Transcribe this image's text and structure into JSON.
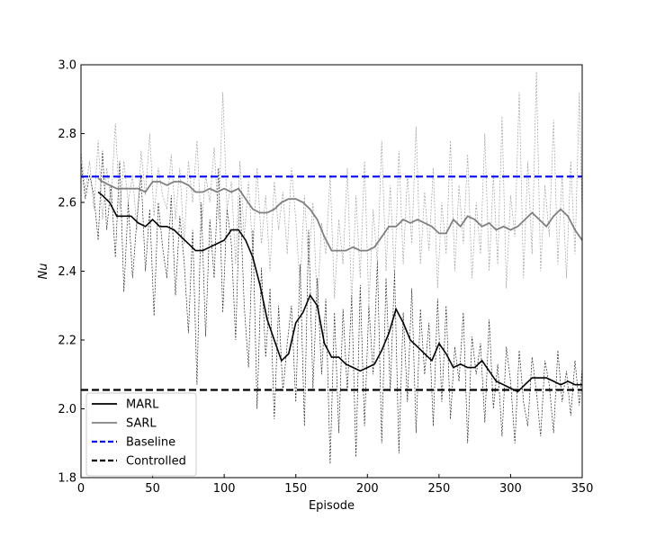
{
  "chart_data": {
    "type": "line",
    "title": "",
    "xlabel": "Episode",
    "ylabel": "Nu",
    "xlim": [
      0,
      350
    ],
    "ylim": [
      1.8,
      3.0
    ],
    "xticks": [
      0,
      50,
      100,
      150,
      200,
      250,
      300,
      350
    ],
    "yticks": [
      1.8,
      2.0,
      2.2,
      2.4,
      2.6,
      2.8,
      3.0
    ],
    "xtick_labels": [
      "0",
      "50",
      "100",
      "150",
      "200",
      "250",
      "300",
      "350"
    ],
    "ytick_labels": [
      "1.8",
      "2.0",
      "2.2",
      "2.4",
      "2.6",
      "2.8",
      "3.0"
    ],
    "grid": false,
    "legend_position": "lower-left",
    "series": [
      {
        "name": "MARL",
        "color": "#000000",
        "style": "solid",
        "x": [
          12,
          15,
          20,
          25,
          30,
          35,
          40,
          45,
          50,
          55,
          60,
          65,
          70,
          75,
          80,
          85,
          90,
          95,
          100,
          105,
          110,
          115,
          120,
          125,
          130,
          135,
          140,
          145,
          150,
          155,
          160,
          165,
          170,
          175,
          180,
          185,
          190,
          195,
          200,
          205,
          210,
          215,
          220,
          225,
          230,
          235,
          240,
          245,
          250,
          255,
          260,
          265,
          270,
          275,
          280,
          285,
          290,
          295,
          300,
          305,
          310,
          315,
          320,
          325,
          330,
          335,
          340,
          345,
          350
        ],
        "values": [
          2.63,
          2.62,
          2.6,
          2.56,
          2.56,
          2.56,
          2.54,
          2.53,
          2.55,
          2.53,
          2.53,
          2.52,
          2.5,
          2.48,
          2.46,
          2.46,
          2.47,
          2.48,
          2.49,
          2.52,
          2.52,
          2.49,
          2.44,
          2.36,
          2.26,
          2.2,
          2.14,
          2.16,
          2.25,
          2.28,
          2.33,
          2.3,
          2.19,
          2.15,
          2.15,
          2.13,
          2.12,
          2.11,
          2.12,
          2.13,
          2.17,
          2.22,
          2.29,
          2.25,
          2.2,
          2.18,
          2.16,
          2.14,
          2.19,
          2.16,
          2.12,
          2.13,
          2.12,
          2.12,
          2.14,
          2.11,
          2.08,
          2.07,
          2.06,
          2.05,
          2.07,
          2.09,
          2.09,
          2.09,
          2.08,
          2.07,
          2.08,
          2.07,
          2.07
        ]
      },
      {
        "name": "SARL",
        "color": "#808080",
        "style": "solid",
        "x": [
          12,
          15,
          20,
          25,
          30,
          35,
          40,
          45,
          50,
          55,
          60,
          65,
          70,
          75,
          80,
          85,
          90,
          95,
          100,
          105,
          110,
          115,
          120,
          125,
          130,
          135,
          140,
          145,
          150,
          155,
          160,
          165,
          170,
          175,
          180,
          185,
          190,
          195,
          200,
          205,
          210,
          215,
          220,
          225,
          230,
          235,
          240,
          245,
          250,
          255,
          260,
          265,
          270,
          275,
          280,
          285,
          290,
          295,
          300,
          305,
          310,
          315,
          320,
          325,
          330,
          335,
          340,
          345,
          350
        ],
        "values": [
          2.67,
          2.66,
          2.65,
          2.64,
          2.64,
          2.64,
          2.64,
          2.63,
          2.66,
          2.66,
          2.65,
          2.66,
          2.66,
          2.65,
          2.63,
          2.63,
          2.64,
          2.63,
          2.64,
          2.63,
          2.64,
          2.61,
          2.58,
          2.57,
          2.57,
          2.58,
          2.6,
          2.61,
          2.61,
          2.6,
          2.58,
          2.55,
          2.5,
          2.46,
          2.46,
          2.46,
          2.47,
          2.46,
          2.46,
          2.47,
          2.5,
          2.53,
          2.53,
          2.55,
          2.54,
          2.55,
          2.54,
          2.53,
          2.51,
          2.51,
          2.55,
          2.53,
          2.56,
          2.55,
          2.53,
          2.54,
          2.52,
          2.53,
          2.52,
          2.53,
          2.55,
          2.57,
          2.55,
          2.53,
          2.56,
          2.58,
          2.56,
          2.52,
          2.49
        ]
      },
      {
        "name": "Baseline",
        "color": "#0000ff",
        "style": "dashed",
        "x": [
          0,
          350
        ],
        "values": [
          2.675,
          2.675
        ]
      },
      {
        "name": "Controlled",
        "color": "#000000",
        "style": "dashed",
        "x": [
          0,
          350
        ],
        "values": [
          2.055,
          2.055
        ]
      }
    ],
    "raw_series": [
      {
        "of": "MARL",
        "color": "#000000",
        "x": [
          0,
          3,
          6,
          9,
          12,
          15,
          18,
          21,
          24,
          27,
          30,
          33,
          36,
          39,
          42,
          45,
          48,
          51,
          54,
          57,
          60,
          63,
          66,
          69,
          72,
          75,
          78,
          81,
          84,
          87,
          90,
          93,
          96,
          99,
          102,
          105,
          108,
          111,
          114,
          117,
          120,
          123,
          126,
          129,
          132,
          135,
          138,
          141,
          144,
          147,
          150,
          153,
          156,
          159,
          162,
          165,
          168,
          171,
          174,
          177,
          180,
          183,
          186,
          189,
          192,
          195,
          198,
          201,
          204,
          207,
          210,
          213,
          216,
          219,
          222,
          225,
          228,
          231,
          234,
          237,
          240,
          243,
          246,
          249,
          252,
          255,
          258,
          261,
          264,
          267,
          270,
          273,
          276,
          279,
          282,
          285,
          288,
          291,
          294,
          297,
          300,
          303,
          306,
          309,
          312,
          315,
          318,
          321,
          324,
          327,
          330,
          333,
          336,
          339,
          342,
          345,
          348,
          350
        ],
        "values": [
          2.72,
          2.61,
          2.68,
          2.62,
          2.49,
          2.75,
          2.52,
          2.65,
          2.44,
          2.72,
          2.34,
          2.6,
          2.38,
          2.55,
          2.68,
          2.4,
          2.58,
          2.27,
          2.6,
          2.47,
          2.38,
          2.62,
          2.33,
          2.56,
          2.43,
          2.22,
          2.52,
          2.07,
          2.6,
          2.21,
          2.55,
          2.38,
          2.7,
          2.28,
          2.58,
          2.48,
          2.2,
          2.62,
          2.3,
          2.12,
          2.52,
          2.0,
          2.41,
          2.15,
          2.35,
          1.97,
          2.3,
          2.05,
          2.19,
          2.3,
          2.02,
          2.42,
          1.95,
          2.52,
          2.06,
          2.38,
          2.1,
          2.32,
          1.84,
          2.28,
          1.93,
          2.29,
          2.05,
          2.33,
          1.86,
          2.36,
          1.95,
          2.3,
          2.1,
          2.43,
          1.9,
          2.38,
          2.05,
          2.4,
          1.87,
          2.28,
          2.02,
          2.35,
          1.93,
          2.29,
          2.1,
          2.25,
          1.95,
          2.32,
          2.02,
          2.3,
          1.97,
          2.18,
          2.08,
          2.28,
          1.9,
          2.21,
          2.1,
          2.19,
          1.96,
          2.26,
          2.0,
          2.13,
          1.92,
          2.18,
          2.08,
          1.9,
          2.17,
          2.02,
          1.95,
          2.15,
          2.05,
          1.92,
          2.14,
          2.07,
          1.93,
          2.17,
          2.02,
          2.11,
          1.98,
          2.14,
          2.01,
          2.12
        ]
      },
      {
        "of": "SARL",
        "color": "#808080",
        "x": [
          0,
          3,
          6,
          9,
          12,
          15,
          18,
          21,
          24,
          27,
          30,
          33,
          36,
          39,
          42,
          45,
          48,
          51,
          54,
          57,
          60,
          63,
          66,
          69,
          72,
          75,
          78,
          81,
          84,
          87,
          90,
          93,
          96,
          99,
          102,
          105,
          108,
          111,
          114,
          117,
          120,
          123,
          126,
          129,
          132,
          135,
          138,
          141,
          144,
          147,
          150,
          153,
          156,
          159,
          162,
          165,
          168,
          171,
          174,
          177,
          180,
          183,
          186,
          189,
          192,
          195,
          198,
          201,
          204,
          207,
          210,
          213,
          216,
          219,
          222,
          225,
          228,
          231,
          234,
          237,
          240,
          243,
          246,
          249,
          252,
          255,
          258,
          261,
          264,
          267,
          270,
          273,
          276,
          279,
          282,
          285,
          288,
          291,
          294,
          297,
          300,
          303,
          306,
          309,
          312,
          315,
          318,
          321,
          324,
          327,
          330,
          333,
          336,
          339,
          342,
          345,
          348,
          350
        ],
        "values": [
          2.75,
          2.63,
          2.72,
          2.58,
          2.78,
          2.55,
          2.7,
          2.6,
          2.83,
          2.58,
          2.72,
          2.6,
          2.68,
          2.52,
          2.75,
          2.62,
          2.8,
          2.56,
          2.7,
          2.62,
          2.58,
          2.74,
          2.55,
          2.7,
          2.48,
          2.72,
          2.6,
          2.78,
          2.52,
          2.68,
          2.6,
          2.76,
          2.55,
          2.92,
          2.58,
          2.66,
          2.42,
          2.72,
          2.5,
          2.66,
          2.45,
          2.7,
          2.48,
          2.62,
          2.4,
          2.66,
          2.52,
          2.63,
          2.45,
          2.7,
          2.55,
          2.35,
          2.62,
          2.42,
          2.6,
          2.3,
          2.54,
          2.45,
          2.68,
          2.32,
          2.55,
          2.42,
          2.7,
          2.3,
          2.62,
          2.38,
          2.72,
          2.3,
          2.58,
          2.42,
          2.78,
          2.4,
          2.65,
          2.38,
          2.75,
          2.42,
          2.68,
          2.48,
          2.82,
          2.42,
          2.63,
          2.46,
          2.7,
          2.35,
          2.6,
          2.45,
          2.78,
          2.4,
          2.65,
          2.48,
          2.74,
          2.38,
          2.6,
          2.45,
          2.8,
          2.4,
          2.68,
          2.42,
          2.85,
          2.35,
          2.62,
          2.5,
          2.92,
          2.38,
          2.72,
          2.45,
          2.98,
          2.4,
          2.65,
          2.5,
          2.84,
          2.42,
          2.68,
          2.38,
          2.72,
          2.45,
          2.92,
          2.55
        ]
      }
    ]
  }
}
